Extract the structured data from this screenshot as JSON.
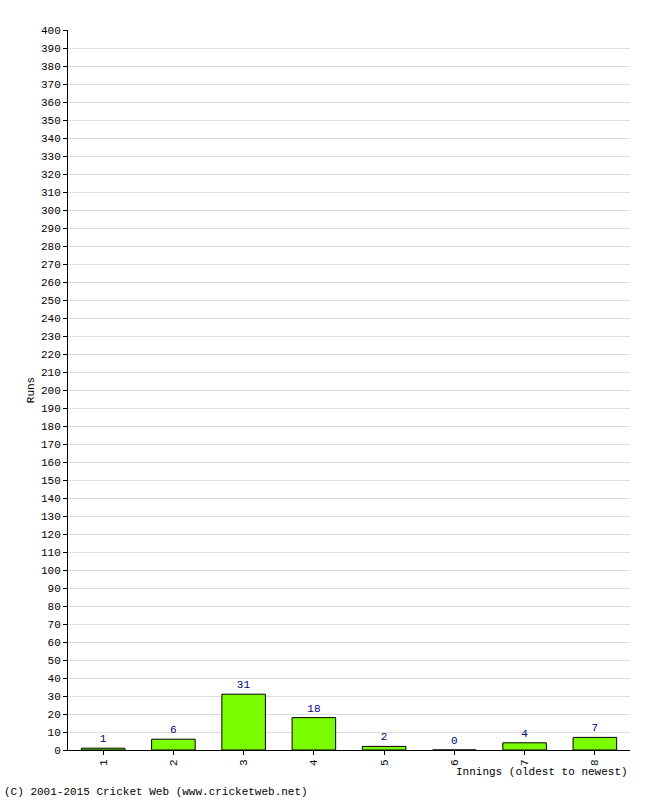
{
  "chart_data": {
    "type": "bar",
    "x_label": "Innings (oldest to newest)",
    "y_label": "Runs",
    "annotations": [
      "(C) 2001-2015 Cricket Web (www.cricketweb.net)"
    ],
    "categories": [
      "1",
      "2",
      "3",
      "4",
      "5",
      "6",
      "7",
      "8"
    ],
    "values": [
      1,
      6,
      31,
      18,
      2,
      0,
      4,
      7
    ],
    "color": "#7cfc00",
    "ylim": [
      0,
      400
    ],
    "yticks": [
      0,
      10,
      20,
      30,
      40,
      50,
      60,
      70,
      80,
      90,
      100,
      110,
      120,
      130,
      140,
      150,
      160,
      170,
      180,
      190,
      200,
      210,
      220,
      230,
      240,
      250,
      260,
      270,
      280,
      290,
      300,
      310,
      320,
      330,
      340,
      350,
      360,
      370,
      380,
      390,
      400
    ],
    "grid": true,
    "data_labels": true
  }
}
